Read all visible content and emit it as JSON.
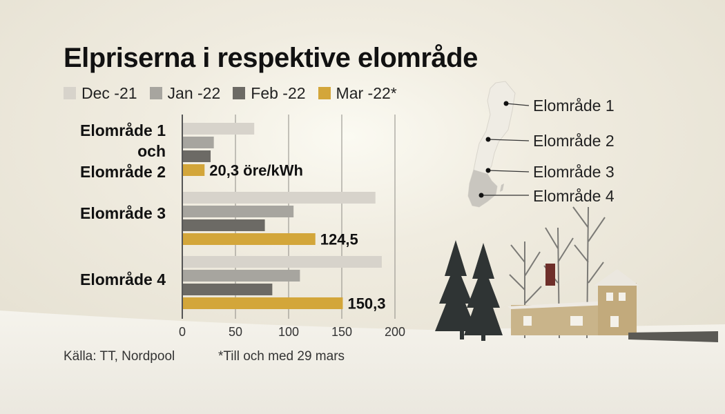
{
  "title": "Elpriserna i respektive elområde",
  "legend": [
    "Dec -21",
    "Jan -22",
    "Feb -22",
    "Mar -22*"
  ],
  "colors": {
    "dec": "#d7d3cb",
    "jan": "#a7a59f",
    "feb": "#6c6a65",
    "mar": "#d3a63a"
  },
  "categories": {
    "cat1_line1": "Elområde 1",
    "cat1_line2": "och",
    "cat1_line3": "Elområde 2",
    "cat2": "Elområde 3",
    "cat3": "Elområde 4"
  },
  "chart_data": {
    "type": "bar",
    "orientation": "horizontal",
    "categories": [
      "Elområde 1 och Elområde 2",
      "Elområde 3",
      "Elområde 4"
    ],
    "series": [
      {
        "name": "Dec -21",
        "values": [
          67,
          181,
          187
        ]
      },
      {
        "name": "Jan -22",
        "values": [
          29,
          104,
          110
        ]
      },
      {
        "name": "Feb -22",
        "values": [
          26,
          77,
          84
        ]
      },
      {
        "name": "Mar -22*",
        "values": [
          20.3,
          124.5,
          150.3
        ]
      }
    ],
    "data_labels": [
      "20,3 öre/kWh",
      "124,5",
      "150,3"
    ],
    "xticks": [
      "0",
      "50",
      "100",
      "150",
      "200"
    ],
    "xlim": [
      0,
      200
    ],
    "grid": true
  },
  "footer": {
    "source": "Källa: TT, Nordpool",
    "note": "*Till och med 29 mars"
  },
  "map_labels": [
    "Elområde 1",
    "Elområde 2",
    "Elområde 3",
    "Elområde 4"
  ]
}
